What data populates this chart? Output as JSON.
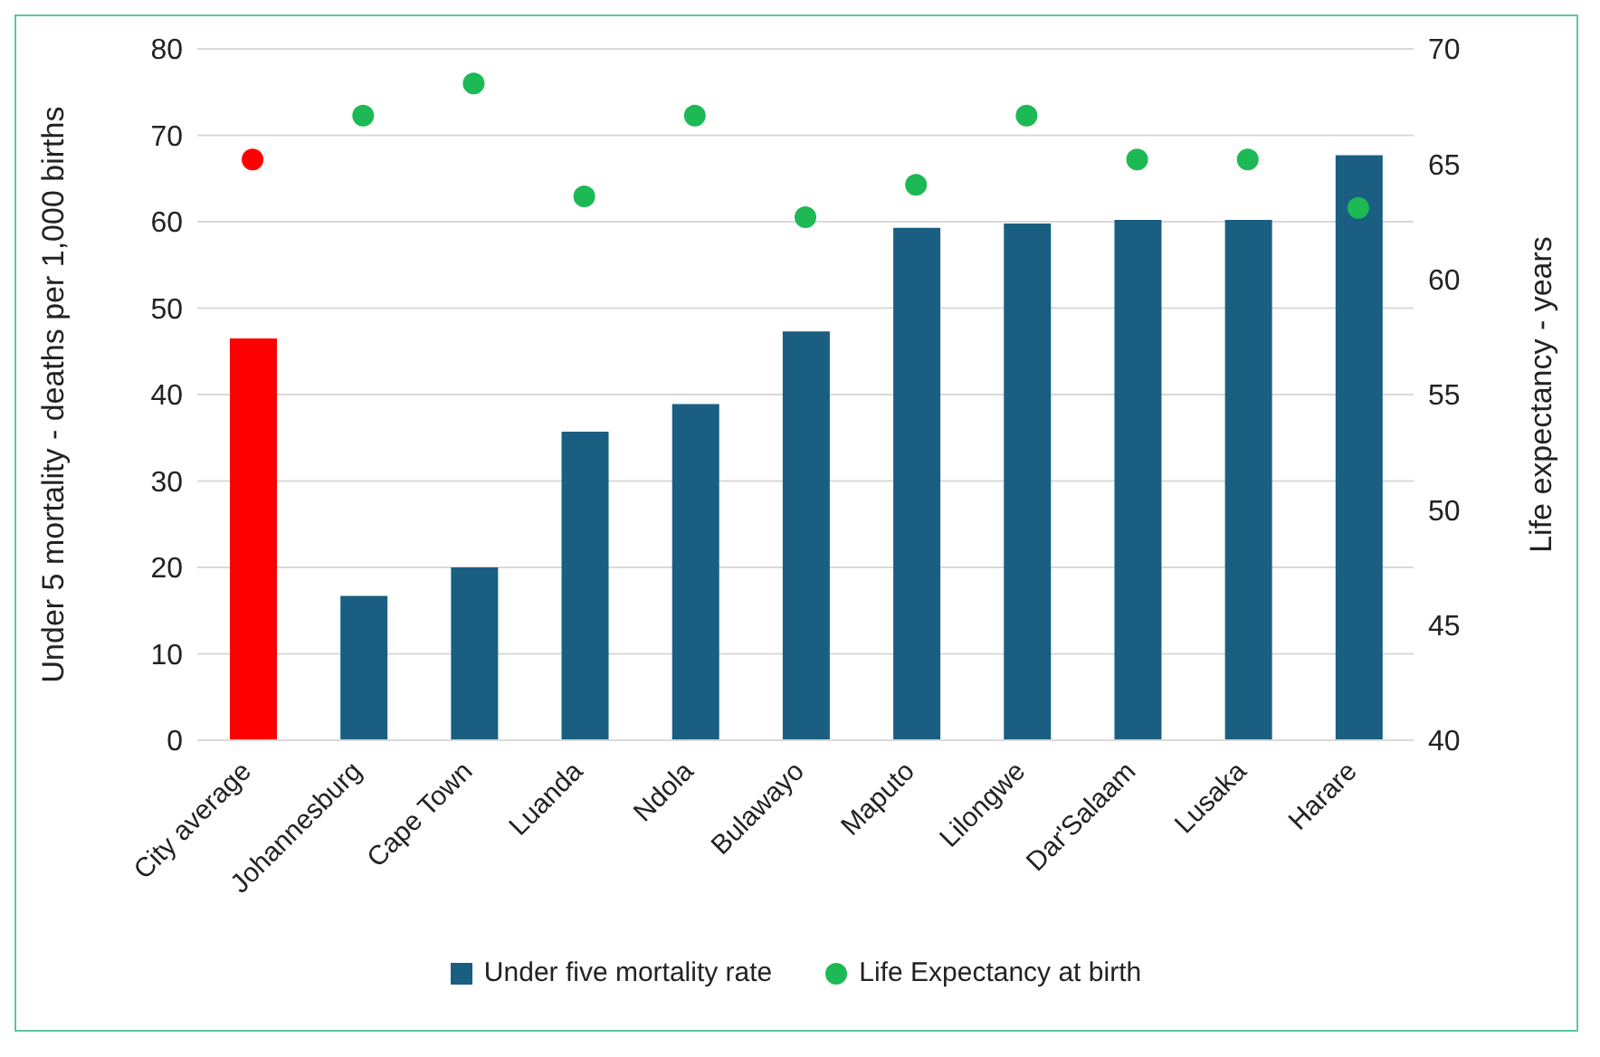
{
  "chart_data": {
    "type": "bar",
    "ylabel": "Under 5 mortality - deaths per 1,000 births",
    "y2label": "Life expectancy - years",
    "categories": [
      "City average",
      "Johannesburg",
      "Cape Town",
      "Luanda",
      "Ndola",
      "Bulawayo",
      "Maputo",
      "Lilongwe",
      "Dar'Salaam",
      "Lusaka",
      "Harare"
    ],
    "series": [
      {
        "name": "Under five mortality rate",
        "color": "#1a5e82",
        "colors": [
          "#ff0000",
          "#1a5e82",
          "#1a5e82",
          "#1a5e82",
          "#1a5e82",
          "#1a5e82",
          "#1a5e82",
          "#1a5e82",
          "#1a5e82",
          "#1a5e82",
          "#1a5e82"
        ],
        "values": [
          46.5,
          16.7,
          20,
          35.7,
          38.9,
          47.3,
          59.3,
          59.8,
          60.2,
          60.2,
          67.7
        ]
      },
      {
        "name": "Life Expectancy at birth",
        "type": "scatter",
        "axis": "y2",
        "marker": "circle",
        "color": "#1db954",
        "colors": [
          "#ff0000",
          "#1db954",
          "#1db954",
          "#1db954",
          "#1db954",
          "#1db954",
          "#1db954",
          "#1db954",
          "#1db954",
          "#1db954",
          "#1db954"
        ],
        "values": [
          65.2,
          67.1,
          68.5,
          63.6,
          67.1,
          62.7,
          64.1,
          67.1,
          65.2,
          65.2,
          63.1
        ]
      }
    ],
    "ylim": [
      0,
      80
    ],
    "yticks": [
      0,
      10,
      20,
      30,
      40,
      50,
      60,
      70,
      80
    ],
    "y2lim": [
      40,
      70
    ],
    "y2ticks": [
      40,
      45,
      50,
      55,
      60,
      65,
      70
    ],
    "grid": "y",
    "legend": "bottom"
  }
}
